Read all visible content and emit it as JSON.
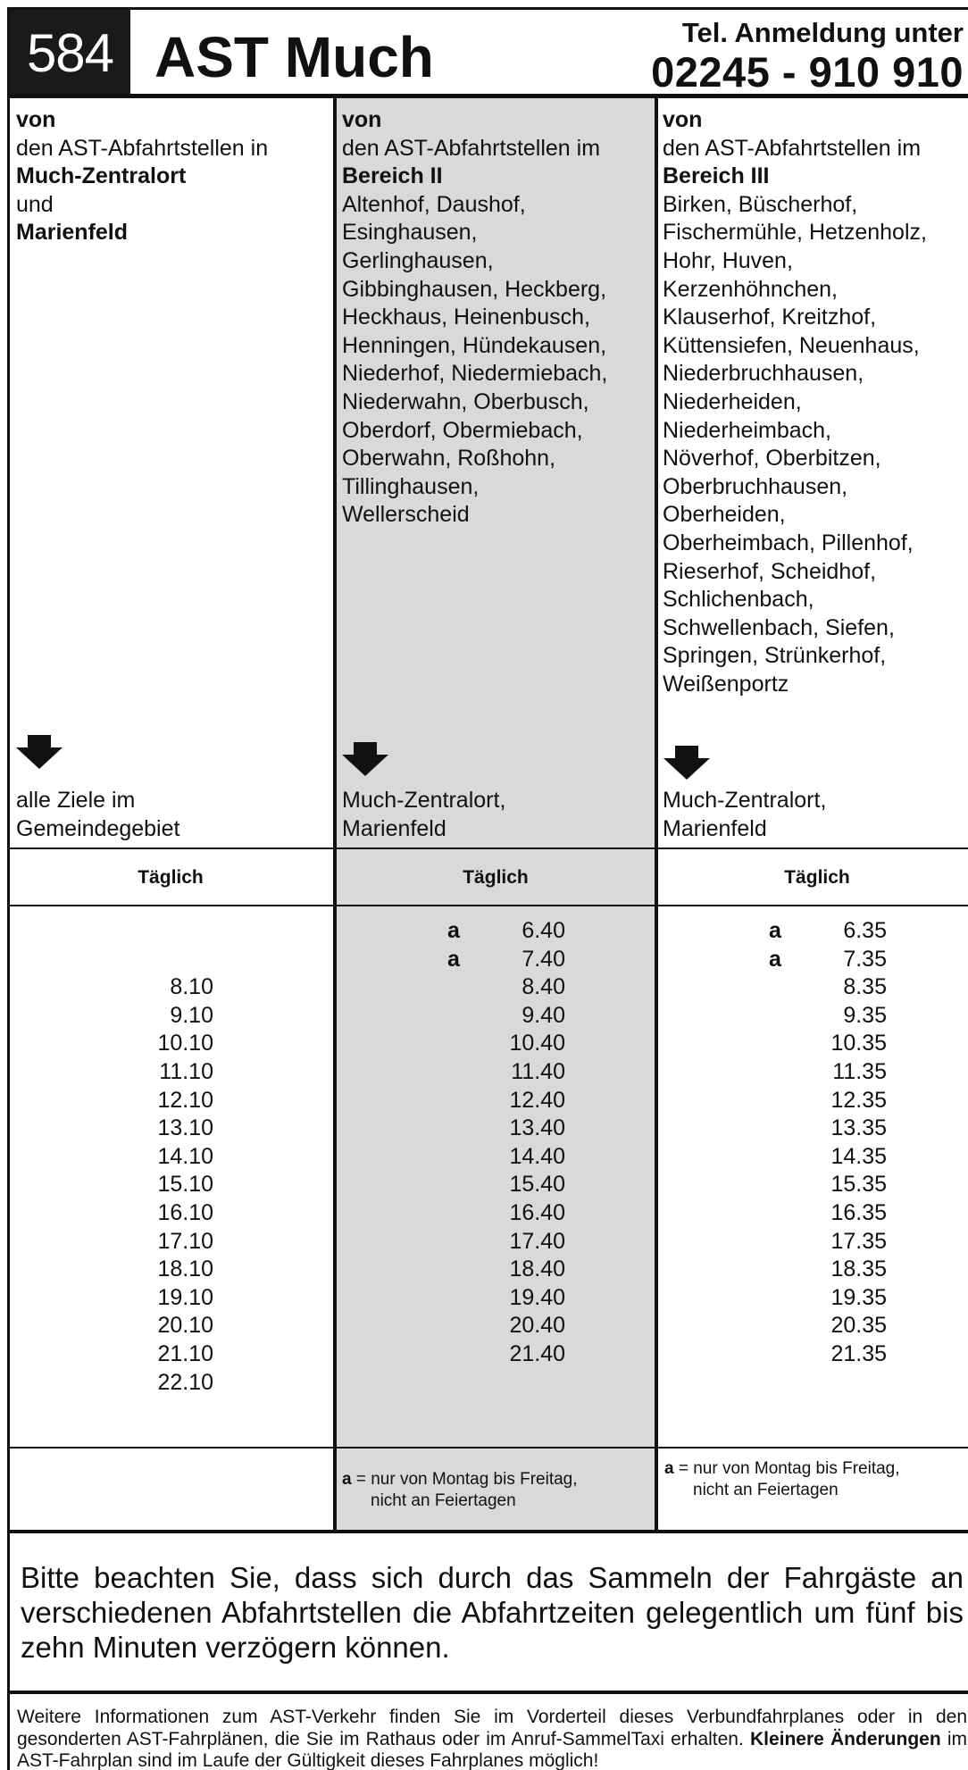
{
  "header": {
    "line_number": "584",
    "title": "AST Much",
    "tel_label": "Tel. Anmeldung unter",
    "tel_number": "02245 - 910 910"
  },
  "columns": [
    {
      "von": "von",
      "intro": "den AST-Abfahrtstellen in",
      "bold1": "Much-Zentralort",
      "und": "und",
      "bold2": "Marienfeld",
      "places": [],
      "arrow_icon": "arrow-down-icon",
      "destination": [
        "alle Ziele im",
        "Gemeindegebiet"
      ],
      "day": "Täglich",
      "times": [
        {
          "flag": "",
          "time": ""
        },
        {
          "flag": "",
          "time": ""
        },
        {
          "flag": "",
          "time": "8.10"
        },
        {
          "flag": "",
          "time": "9.10"
        },
        {
          "flag": "",
          "time": "10.10"
        },
        {
          "flag": "",
          "time": "11.10"
        },
        {
          "flag": "",
          "time": "12.10"
        },
        {
          "flag": "",
          "time": "13.10"
        },
        {
          "flag": "",
          "time": "14.10"
        },
        {
          "flag": "",
          "time": "15.10"
        },
        {
          "flag": "",
          "time": "16.10"
        },
        {
          "flag": "",
          "time": "17.10"
        },
        {
          "flag": "",
          "time": "18.10"
        },
        {
          "flag": "",
          "time": "19.10"
        },
        {
          "flag": "",
          "time": "20.10"
        },
        {
          "flag": "",
          "time": "21.10"
        },
        {
          "flag": "",
          "time": "22.10"
        }
      ],
      "footnote": null
    },
    {
      "von": "von",
      "intro": "den AST-Abfahrtstellen im",
      "bold1": "Bereich II",
      "places": [
        "Altenhof, Daushof,",
        "Esinghausen,",
        "Gerlinghausen,",
        "Gibbinghausen, Heckberg,",
        "Heckhaus, Heinenbusch,",
        "Henningen, Hündekausen,",
        "Niederhof, Niedermiebach,",
        "Niederwahn, Oberbusch,",
        "Oberdorf, Obermiebach,",
        "Oberwahn, Roßhohn,",
        "Tillinghausen,",
        "Wellerscheid"
      ],
      "arrow_icon": "arrow-down-icon",
      "destination": [
        "Much-Zentralort,",
        "Marienfeld"
      ],
      "day": "Täglich",
      "times": [
        {
          "flag": "a",
          "time": "6.40"
        },
        {
          "flag": "a",
          "time": "7.40"
        },
        {
          "flag": "",
          "time": "8.40"
        },
        {
          "flag": "",
          "time": "9.40"
        },
        {
          "flag": "",
          "time": "10.40"
        },
        {
          "flag": "",
          "time": "11.40"
        },
        {
          "flag": "",
          "time": "12.40"
        },
        {
          "flag": "",
          "time": "13.40"
        },
        {
          "flag": "",
          "time": "14.40"
        },
        {
          "flag": "",
          "time": "15.40"
        },
        {
          "flag": "",
          "time": "16.40"
        },
        {
          "flag": "",
          "time": "17.40"
        },
        {
          "flag": "",
          "time": "18.40"
        },
        {
          "flag": "",
          "time": "19.40"
        },
        {
          "flag": "",
          "time": "20.40"
        },
        {
          "flag": "",
          "time": "21.40"
        }
      ],
      "footnote": {
        "key": "a",
        "line1": "= nur von Montag bis Freitag,",
        "line2": "nicht an Feiertagen"
      }
    },
    {
      "von": "von",
      "intro": "den AST-Abfahrtstellen im",
      "bold1": "Bereich III",
      "places": [
        "Birken, Büscherhof,",
        "Fischermühle, Hetzenholz,",
        "Hohr, Huven,",
        "Kerzenhöhnchen,",
        "Klauserhof, Kreitzhof,",
        "Küttensiefen, Neuenhaus,",
        "Niederbruchhausen,",
        "Niederheiden,",
        "Niederheimbach,",
        "Növerhof, Oberbitzen,",
        "Oberbruchhausen,",
        "Oberheiden,",
        "Oberheimbach, Pillenhof,",
        "Rieserhof, Scheidhof,",
        "Schlichenbach,",
        "Schwellenbach, Siefen,",
        "Springen, Strünkerhof,",
        "Weißenportz"
      ],
      "arrow_icon": "arrow-down-icon",
      "destination": [
        "Much-Zentralort,",
        "Marienfeld"
      ],
      "day": "Täglich",
      "times": [
        {
          "flag": "a",
          "time": "6.35"
        },
        {
          "flag": "a",
          "time": "7.35"
        },
        {
          "flag": "",
          "time": "8.35"
        },
        {
          "flag": "",
          "time": "9.35"
        },
        {
          "flag": "",
          "time": "10.35"
        },
        {
          "flag": "",
          "time": "11.35"
        },
        {
          "flag": "",
          "time": "12.35"
        },
        {
          "flag": "",
          "time": "13.35"
        },
        {
          "flag": "",
          "time": "14.35"
        },
        {
          "flag": "",
          "time": "15.35"
        },
        {
          "flag": "",
          "time": "16.35"
        },
        {
          "flag": "",
          "time": "17.35"
        },
        {
          "flag": "",
          "time": "18.35"
        },
        {
          "flag": "",
          "time": "19.35"
        },
        {
          "flag": "",
          "time": "20.35"
        },
        {
          "flag": "",
          "time": "21.35"
        }
      ],
      "footnote": {
        "key": "a",
        "line1": "= nur von Montag bis Freitag,",
        "line2": "nicht an Feiertagen"
      }
    }
  ],
  "notice": "Bitte beachten Sie, dass sich durch das Sammeln der Fahrgäste an verschiedenen Abfahrtstellen die Abfahrtzeiten gelegentlich um fünf bis zehn Minuten verzögern können.",
  "info": {
    "text": "Weitere Informationen zum AST-Verkehr finden Sie im Vorderteil dieses Verbundfahrplanes oder in den gesonderten AST-Fahrplänen, die Sie im Rathaus oder im Anruf-SammelTaxi erhalten.",
    "bold": "Kleinere Änderungen",
    "rest": " im AST-Fahrplan sind im Laufe der Gültigkeit dieses Fahrplanes möglich!"
  },
  "colors": {
    "ink": "#111111",
    "shade": "#d9d9d9",
    "header_bg": "#1a1a1a"
  }
}
